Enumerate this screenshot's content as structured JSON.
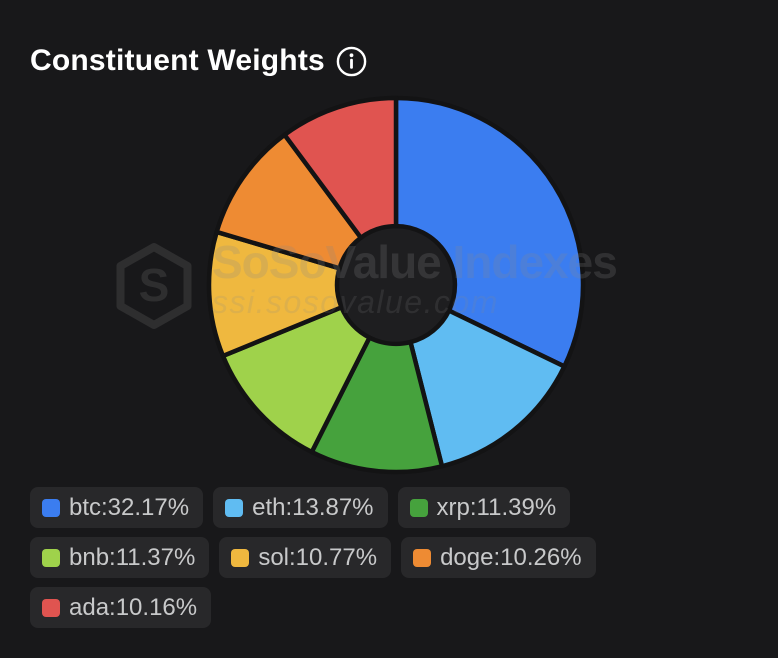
{
  "header": {
    "title": "Constituent Weights",
    "info_icon": "info"
  },
  "watermark": {
    "brand": "SoSoValue Indexes",
    "url": "ssi.sosovalue.com"
  },
  "colors": {
    "background": "#18181a",
    "chip_background": "#28282a",
    "chip_text": "#c8c9ca",
    "slice_stroke": "#131314",
    "hole_fill": "#1e1e20",
    "title_text": "#ffffff"
  },
  "chart_data": {
    "type": "pie",
    "style": "donut",
    "title": "Constituent Weights",
    "start_angle_deg": -90,
    "direction": "clockwise",
    "inner_radius_ratio": 0.315,
    "legend_position": "bottom",
    "legend_rows": [
      3,
      3,
      1
    ],
    "slices": [
      {
        "label": "btc",
        "value": 32.17,
        "display": "btc:32.17%",
        "color": "#3b7df0"
      },
      {
        "label": "eth",
        "value": 13.87,
        "display": "eth:13.87%",
        "color": "#60bcf2"
      },
      {
        "label": "xrp",
        "value": 11.39,
        "display": "xrp:11.39%",
        "color": "#46a23d"
      },
      {
        "label": "bnb",
        "value": 11.37,
        "display": "bnb:11.37%",
        "color": "#9fd24b"
      },
      {
        "label": "sol",
        "value": 10.77,
        "display": "sol:10.77%",
        "color": "#efb83f"
      },
      {
        "label": "doge",
        "value": 10.26,
        "display": "doge:10.26%",
        "color": "#ee8b33"
      },
      {
        "label": "ada",
        "value": 10.16,
        "display": "ada:10.16%",
        "color": "#e05450"
      }
    ]
  }
}
